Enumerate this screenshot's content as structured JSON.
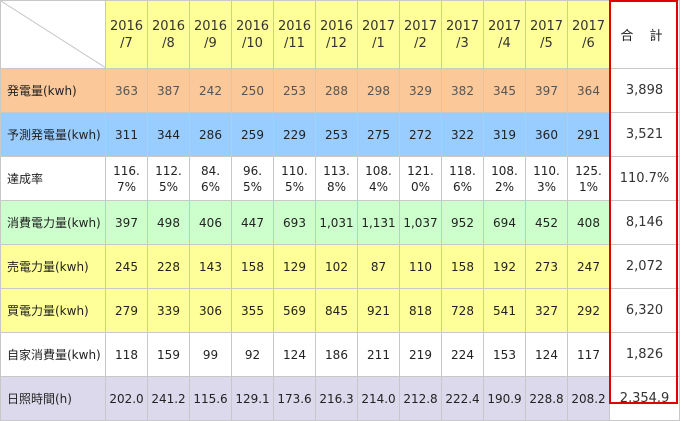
{
  "header": {
    "months": [
      "2016\n/7",
      "2016\n/8",
      "2016\n/9",
      "2016\n/10",
      "2016\n/11",
      "2016\n/12",
      "2017\n/1",
      "2017\n/2",
      "2017\n/3",
      "2017\n/4",
      "2017\n/5",
      "2017\n/6"
    ],
    "total_label": "合 計"
  },
  "rows": [
    {
      "label": "発電量(kwh)",
      "values": [
        "363",
        "387",
        "242",
        "250",
        "253",
        "288",
        "298",
        "329",
        "382",
        "345",
        "397",
        "364"
      ],
      "total": "3,898"
    },
    {
      "label": "予測発電量(kwh)",
      "values": [
        "311",
        "344",
        "286",
        "259",
        "229",
        "253",
        "275",
        "272",
        "322",
        "319",
        "360",
        "291"
      ],
      "total": "3,521"
    },
    {
      "label": "達成率",
      "values": [
        "116.\n7%",
        "112.\n5%",
        "84.\n6%",
        "96.\n5%",
        "110.\n5%",
        "113.\n8%",
        "108.\n4%",
        "121.\n0%",
        "118.\n6%",
        "108.\n2%",
        "110.\n3%",
        "125.\n1%"
      ],
      "total": "110.7%"
    },
    {
      "label": "消費電力量(kwh)",
      "values": [
        "397",
        "498",
        "406",
        "447",
        "693",
        "1,031",
        "1,131",
        "1,037",
        "952",
        "694",
        "452",
        "408"
      ],
      "total": "8,146"
    },
    {
      "label": "売電力量(kwh)",
      "values": [
        "245",
        "228",
        "143",
        "158",
        "129",
        "102",
        "87",
        "110",
        "158",
        "192",
        "273",
        "247"
      ],
      "total": "2,072"
    },
    {
      "label": "買電力量(kwh)",
      "values": [
        "279",
        "339",
        "306",
        "355",
        "569",
        "845",
        "921",
        "818",
        "728",
        "541",
        "327",
        "292"
      ],
      "total": "6,320"
    },
    {
      "label": "自家消費量(kwh)",
      "values": [
        "118",
        "159",
        "99",
        "92",
        "124",
        "186",
        "211",
        "219",
        "224",
        "153",
        "124",
        "117"
      ],
      "total": "1,826"
    },
    {
      "label": "日照時間(h)",
      "values": [
        "202.0",
        "241.2",
        "115.6",
        "129.1",
        "173.6",
        "216.3",
        "214.0",
        "212.8",
        "222.4",
        "190.9",
        "228.8",
        "208.2"
      ],
      "total": "2,354.9"
    }
  ],
  "colors": {
    "month_header": "#ffff99",
    "generation": "#fbc89a",
    "predicted": "#99ccff",
    "consumption": "#ccffcc",
    "sold": "#ffff99",
    "bought": "#ffff99",
    "sunshine": "#ddd9ec",
    "total_outline": "#e00000"
  }
}
